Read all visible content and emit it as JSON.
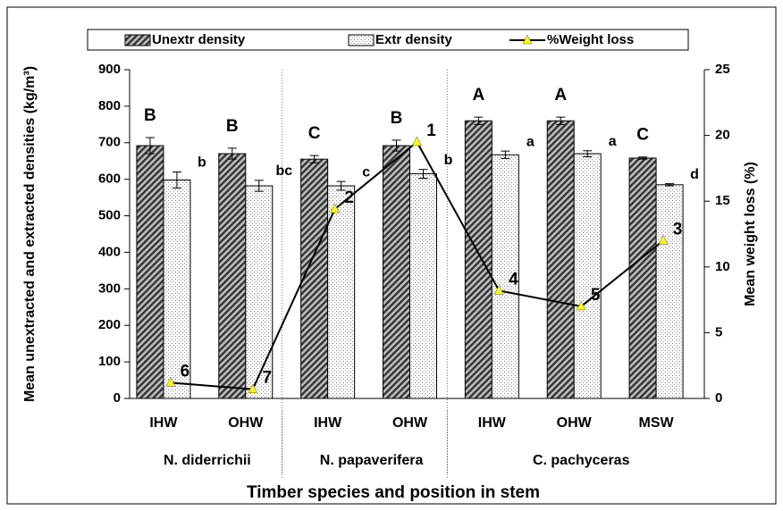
{
  "chart_data": {
    "type": "bar",
    "x_label": "Timber species and position in stem",
    "y_label": "Mean unextracted and extracted densities (kg/m³)",
    "y2_label": "Mean weight loss (%)",
    "categories": [
      "IHW",
      "OHW",
      "IHW",
      "OHW",
      "IHW",
      "OHW",
      "MSW"
    ],
    "groups": [
      "N. diderrichii",
      "N. papaverifera",
      "C. pachyceras"
    ],
    "series": [
      {
        "name": "Unextr density",
        "color": "#333333",
        "values": [
          692,
          670,
          655,
          692,
          760,
          760,
          658
        ],
        "errors": [
          22,
          15,
          10,
          15,
          10,
          10,
          3
        ],
        "letters": [
          "B",
          "B",
          "C",
          "B",
          "A",
          "A",
          "C"
        ]
      },
      {
        "name": "Extr density",
        "color": "#ffffff",
        "values": [
          598,
          582,
          582,
          615,
          667,
          670,
          585
        ],
        "errors": [
          22,
          15,
          12,
          12,
          10,
          8,
          3
        ],
        "letters": [
          "b",
          "bc",
          "c",
          "b",
          "a",
          "a",
          "d"
        ]
      },
      {
        "name": "%Weight loss",
        "type": "line",
        "axis": "y2",
        "color": "#000000",
        "marker_color": "#ffff00",
        "values": [
          1.2,
          0.7,
          14.4,
          19.5,
          8.2,
          7.0,
          12.0
        ],
        "point_labels": [
          "6",
          "7",
          "2",
          "1",
          "4",
          "5",
          "3"
        ]
      }
    ],
    "ylim": [
      0,
      900
    ],
    "yticks": [
      0,
      100,
      200,
      300,
      400,
      500,
      600,
      700,
      800,
      900
    ],
    "y2lim": [
      0,
      25
    ],
    "y2ticks": [
      0,
      5,
      10,
      15,
      20,
      25
    ],
    "legend": "top"
  }
}
